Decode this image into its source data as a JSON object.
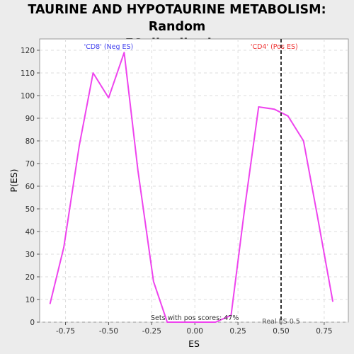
{
  "chart_data": {
    "type": "line",
    "title_line1": "TAURINE AND HYPOTAURINE METABOLISM: Random",
    "title_line2": "ES distribution",
    "xlabel": "ES",
    "ylabel": "P(ES)",
    "xlim": [
      -0.9,
      0.89
    ],
    "ylim": [
      0,
      125
    ],
    "xticks": [
      -0.75,
      -0.5,
      -0.25,
      0.0,
      0.25,
      0.5,
      0.75
    ],
    "xtick_labels": [
      "-0.75",
      "-0.50",
      "-0.25",
      "0.00",
      "0.25",
      "0.50",
      "0.75"
    ],
    "yticks": [
      0,
      10,
      20,
      30,
      40,
      50,
      60,
      70,
      80,
      90,
      100,
      110,
      120
    ],
    "ytick_labels": [
      "0",
      "10",
      "20",
      "30",
      "40",
      "50",
      "60",
      "70",
      "80",
      "90",
      "100",
      "110",
      "120"
    ],
    "grid": true,
    "series": [
      {
        "color": "#ee44ee",
        "x": [
          -0.84,
          -0.76,
          -0.67,
          -0.59,
          -0.5,
          -0.41,
          -0.33,
          -0.24,
          -0.16,
          0.0,
          0.12,
          0.21,
          0.29,
          0.37,
          0.46,
          0.54,
          0.63,
          0.71,
          0.8
        ],
        "y": [
          8,
          33,
          78,
          110,
          99,
          119,
          67,
          18,
          0,
          0,
          0,
          3,
          51,
          95,
          94,
          91,
          80,
          47,
          9
        ]
      }
    ],
    "vline": {
      "x": 0.5,
      "label": "Real ES 0.5",
      "color": "#333333"
    },
    "annotations": {
      "neg": {
        "text": "'CD8' (Neg ES)",
        "color": "#4444ee"
      },
      "pos": {
        "text": "'CD4' (Pos ES)",
        "color": "#ee3333"
      },
      "sets": {
        "text": "Sets with pos scores: 47%",
        "color": "#333333"
      }
    }
  }
}
